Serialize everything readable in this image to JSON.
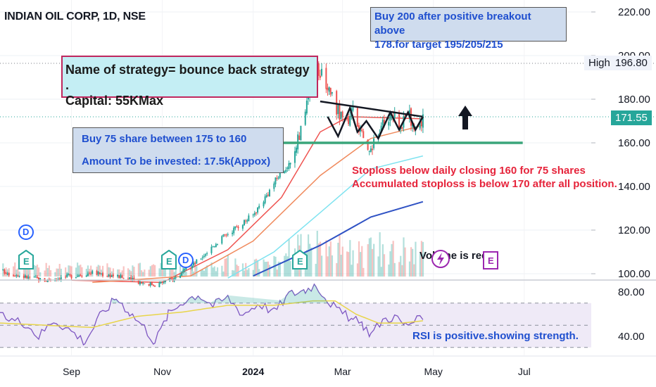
{
  "header": {
    "symbol_title": "INDIAN OIL CORP, 1D, NSE"
  },
  "annotations": {
    "strategy_box": [
      "Name of strategy= bounce back strategy .",
      "Capital: 55KMax"
    ],
    "buy_box": [
      "Buy 75 share between  175 to 160",
      "Amount To be  invested: 17.5k(Appox)"
    ],
    "breakout_box": [
      "Buy  200 after positive breakout above",
      "178.for target 195/205/215"
    ],
    "stoploss_note": [
      "Stoploss below daily closing 160 for 75 shares",
      "Accumulated stoploss is below 170 after all position."
    ],
    "rsi_note": "RSI is positive.showing strength.",
    "volume_note": "Volume is required."
  },
  "price_tags": {
    "high_label": "High",
    "high_value": "196.80",
    "last_value": "171.55"
  },
  "badges": {
    "dividend": "D",
    "earnings": "E"
  },
  "colors": {
    "up": "#26a69a",
    "down": "#ef5350",
    "ema_short": "#ef5350",
    "ema_mid": "#f08a5d",
    "ema_long_cyan": "#7fe3f0",
    "ema_200": "#2f52c4",
    "support_line": "#3aa57a",
    "rsi_line": "#7e57c2",
    "rsi_ma": "#e8d54a",
    "arrow": "#131722"
  },
  "chart_data": [
    {
      "type": "candlestick",
      "title": "INDIAN OIL CORP, 1D, NSE",
      "x_ticks": [
        "Sep",
        "Nov",
        "2024",
        "Mar",
        "May",
        "Jul"
      ],
      "y_ticks": [
        100,
        120,
        140,
        160,
        180,
        200,
        220
      ],
      "ylim": [
        99,
        225
      ],
      "xlim": [
        "2023-07-15",
        "2024-08-15"
      ],
      "scale": "linear",
      "last_price": 171.55,
      "high": 196.8,
      "support_level": 160,
      "resistance_trendline": {
        "from": {
          "date": "2024-02-15",
          "price": 179
        },
        "to": {
          "date": "2024-04-24",
          "price": 172
        }
      },
      "price_path": [
        [
          "2023-07-15",
          101.5
        ],
        [
          "2023-08-01",
          98.5
        ],
        [
          "2023-08-15",
          97
        ],
        [
          "2023-09-01",
          99
        ],
        [
          "2023-09-15",
          100.5
        ],
        [
          "2023-10-01",
          99
        ],
        [
          "2023-10-15",
          96.5
        ],
        [
          "2023-10-27",
          95
        ],
        [
          "2023-11-08",
          97.5
        ],
        [
          "2023-11-20",
          103
        ],
        [
          "2023-12-01",
          110
        ],
        [
          "2023-12-10",
          116
        ],
        [
          "2023-12-20",
          121
        ],
        [
          "2024-01-01",
          127
        ],
        [
          "2024-01-10",
          136
        ],
        [
          "2024-01-18",
          145
        ],
        [
          "2024-01-26",
          151
        ],
        [
          "2024-02-03",
          168
        ],
        [
          "2024-02-09",
          190
        ],
        [
          "2024-02-14",
          193
        ],
        [
          "2024-02-20",
          186
        ],
        [
          "2024-02-26",
          176
        ],
        [
          "2024-03-03",
          168
        ],
        [
          "2024-03-08",
          175
        ],
        [
          "2024-03-13",
          165
        ],
        [
          "2024-03-18",
          155
        ],
        [
          "2024-03-23",
          162
        ],
        [
          "2024-03-28",
          168
        ],
        [
          "2024-04-03",
          173
        ],
        [
          "2024-04-09",
          167
        ],
        [
          "2024-04-14",
          174
        ],
        [
          "2024-04-19",
          166
        ],
        [
          "2024-04-24",
          171.55
        ]
      ],
      "moving_averages": [
        {
          "path": [
            [
              "2023-09-01",
              97
            ],
            [
              "2023-11-01",
              96
            ],
            [
              "2023-12-15",
              111
            ],
            [
              "2024-01-20",
              135
            ],
            [
              "2024-02-15",
              165
            ],
            [
              "2024-03-05",
              172
            ],
            [
              "2024-04-24",
              171
            ]
          ]
        },
        {
          "path": [
            [
              "2023-09-15",
              96
            ],
            [
              "2023-11-20",
              99
            ],
            [
              "2024-01-01",
              115
            ],
            [
              "2024-02-15",
              145
            ],
            [
              "2024-03-20",
              162
            ],
            [
              "2024-04-24",
              168
            ]
          ]
        },
        {
          "path": [
            [
              "2023-12-15",
              98
            ],
            [
              "2024-01-15",
              110
            ],
            [
              "2024-02-15",
              128
            ],
            [
              "2024-03-20",
              148
            ],
            [
              "2024-04-24",
              154
            ]
          ]
        },
        {
          "path": [
            [
              "2024-01-01",
              99
            ],
            [
              "2024-02-15",
              113
            ],
            [
              "2024-03-20",
              126
            ],
            [
              "2024-04-24",
              133
            ]
          ]
        }
      ]
    },
    {
      "type": "line",
      "title": "RSI",
      "y_ticks": [
        40,
        80
      ],
      "ylim": [
        30,
        92
      ],
      "bands": [
        30,
        70
      ],
      "series": [
        {
          "points": [
            [
              "2023-07-15",
              58
            ],
            [
              "2023-08-01",
              52
            ],
            [
              "2023-08-10",
              40
            ],
            [
              "2023-08-20",
              55
            ],
            [
              "2023-09-01",
              45
            ],
            [
              "2023-09-10",
              35
            ],
            [
              "2023-09-20",
              58
            ],
            [
              "2023-10-01",
              75
            ],
            [
              "2023-10-10",
              62
            ],
            [
              "2023-10-20",
              48
            ],
            [
              "2023-10-27",
              35
            ],
            [
              "2023-11-05",
              60
            ],
            [
              "2023-11-15",
              72
            ],
            [
              "2023-11-25",
              78
            ],
            [
              "2023-12-05",
              68
            ],
            [
              "2023-12-15",
              75
            ],
            [
              "2023-12-25",
              60
            ],
            [
              "2024-01-05",
              70
            ],
            [
              "2024-01-15",
              62
            ],
            [
              "2024-01-25",
              78
            ],
            [
              "2024-02-05",
              82
            ],
            [
              "2024-02-12",
              87
            ],
            [
              "2024-02-20",
              73
            ],
            [
              "2024-02-28",
              62
            ],
            [
              "2024-03-08",
              55
            ],
            [
              "2024-03-15",
              50
            ],
            [
              "2024-03-20",
              42
            ],
            [
              "2024-03-28",
              55
            ],
            [
              "2024-04-05",
              58
            ],
            [
              "2024-04-12",
              50
            ],
            [
              "2024-04-18",
              54
            ],
            [
              "2024-04-24",
              55
            ]
          ]
        },
        {
          "points": [
            [
              "2023-07-15",
              52
            ],
            [
              "2023-08-15",
              50
            ],
            [
              "2023-09-15",
              48
            ],
            [
              "2023-10-15",
              58
            ],
            [
              "2023-11-15",
              62
            ],
            [
              "2023-12-15",
              68
            ],
            [
              "2024-01-15",
              68
            ],
            [
              "2024-02-10",
              72
            ],
            [
              "2024-02-25",
              72
            ],
            [
              "2024-03-10",
              60
            ],
            [
              "2024-03-25",
              52
            ],
            [
              "2024-04-10",
              52
            ],
            [
              "2024-04-24",
              54
            ]
          ]
        }
      ]
    }
  ]
}
